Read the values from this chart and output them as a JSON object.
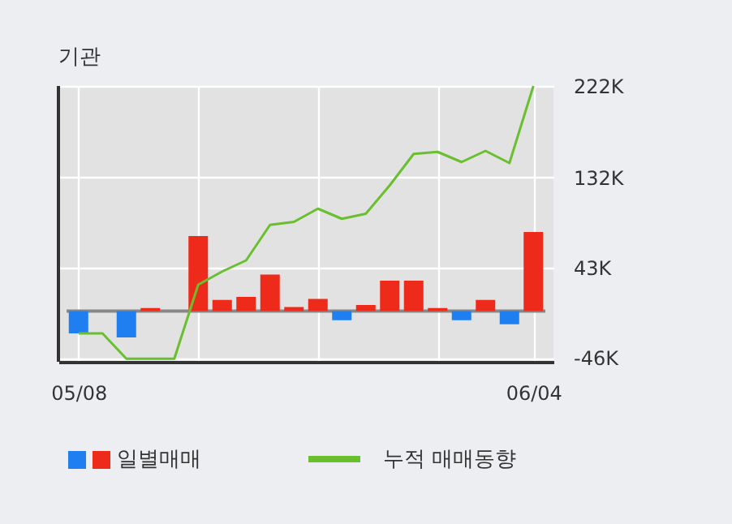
{
  "chart_data": {
    "type": "bar",
    "title": "기관",
    "categories": [
      "05/08",
      null,
      null,
      null,
      null,
      null,
      null,
      null,
      null,
      null,
      null,
      null,
      null,
      null,
      null,
      null,
      null,
      null,
      null,
      "06/04"
    ],
    "series": [
      {
        "name": "일별매매",
        "colors": [
          "#1f7ef0",
          "#1f7ef0",
          "#1f7ef0",
          "#ee2a1a",
          "#ee2a1a",
          "#ee2a1a",
          "#ee2a1a",
          "#ee2a1a",
          "#ee2a1a",
          "#ee2a1a",
          "#ee2a1a",
          "#1f7ef0",
          "#ee2a1a",
          "#ee2a1a",
          "#ee2a1a",
          "#ee2a1a",
          "#1f7ef0",
          "#ee2a1a",
          "#1f7ef0",
          "#ee2a1a"
        ],
        "values": [
          -22,
          0,
          -26,
          3,
          0,
          74,
          11,
          14,
          36,
          4,
          12,
          -9,
          6,
          30,
          30,
          3,
          -9,
          11,
          -13,
          78
        ]
      },
      {
        "name": "누적 매매동향",
        "type": "line",
        "color": "#6abf2e",
        "values": [
          -22,
          -22,
          -47,
          -47,
          -47,
          26,
          39,
          50,
          85,
          88,
          101,
          91,
          96,
          124,
          155,
          157,
          147,
          158,
          146,
          222
        ]
      }
    ],
    "ylim": [
      -50,
      222
    ],
    "yticks": [
      {
        "value": 222,
        "label": "222K"
      },
      {
        "value": 132,
        "label": "132K"
      },
      {
        "value": 43,
        "label": "43K"
      },
      {
        "value": -46,
        "label": "-46K"
      }
    ],
    "ref_lines": [
      {
        "axis": "y",
        "value": 0,
        "color": "#888888"
      }
    ],
    "grid": true,
    "legend": "bottom"
  }
}
